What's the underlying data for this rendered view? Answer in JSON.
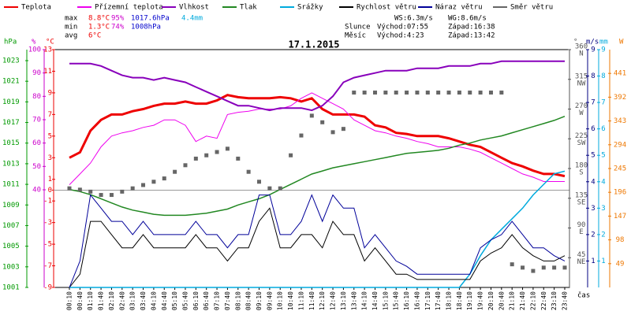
{
  "chart_data": {
    "type": "line",
    "title": "17.1.2015",
    "stats": [
      {
        "label": "max",
        "values": [
          "8.8°C",
          "95%",
          "1017.6hPa",
          "4.4mm"
        ]
      },
      {
        "label": "min",
        "values": [
          "1.3°C",
          "74%",
          "1008hPa"
        ]
      },
      {
        "label": "avg",
        "values": [
          "6°C"
        ]
      }
    ],
    "wind_stats": [
      "WS:6.3m/s",
      "WG:8.6m/s"
    ],
    "sun": [
      "Slunce",
      "Východ:07:55",
      "Západ:16:38"
    ],
    "moon": [
      "Měsíc",
      "Východ:4:23",
      "Západ:13:42"
    ],
    "x_label": "čas",
    "categories": [
      "00:10",
      "00:40",
      "01:10",
      "01:40",
      "02:10",
      "02:40",
      "03:10",
      "03:40",
      "04:10",
      "04:40",
      "05:10",
      "05:40",
      "06:10",
      "06:40",
      "07:10",
      "07:40",
      "08:10",
      "08:40",
      "09:10",
      "09:40",
      "10:10",
      "10:40",
      "11:10",
      "11:40",
      "12:10",
      "12:40",
      "13:10",
      "13:40",
      "14:10",
      "14:40",
      "15:10",
      "15:40",
      "16:10",
      "16:40",
      "17:10",
      "17:40",
      "18:10",
      "18:40",
      "19:10",
      "19:40",
      "20:10",
      "20:40",
      "21:10",
      "21:40",
      "22:10",
      "22:40",
      "23:10",
      "23:40"
    ],
    "axes": [
      {
        "label": "hPa",
        "side": "left",
        "color": "#009900",
        "lim": [
          1001,
          1023
        ],
        "ticks": [
          1001,
          1003,
          1005,
          1007,
          1009,
          1011,
          1013,
          1015,
          1017,
          1019,
          1021,
          1023
        ]
      },
      {
        "label": "%",
        "side": "left",
        "color": "#cc00cc",
        "lim": [
          40,
          100
        ],
        "ticks": [
          40,
          50,
          60,
          70,
          80,
          90,
          100
        ]
      },
      {
        "label": "°C",
        "side": "left",
        "color": "#ee0000",
        "lim": [
          -9,
          13
        ],
        "ticks": [
          -9,
          -7,
          -5,
          -3,
          -1,
          0,
          1,
          3,
          5,
          7,
          9,
          11,
          13
        ]
      },
      {
        "label": "°",
        "side": "right",
        "color": "#555555",
        "lim": [
          0,
          360
        ],
        "ticks": [
          45,
          90,
          135,
          180,
          225,
          270,
          315,
          360
        ],
        "tick_names": [
          "NE",
          "E",
          "SE",
          "S",
          "SW",
          "W",
          "NW",
          "N"
        ]
      },
      {
        "label": "m/s",
        "side": "right",
        "color": "#000080",
        "lim": [
          0,
          9
        ],
        "ticks": [
          1,
          2,
          3,
          4,
          5,
          6,
          7,
          8,
          9
        ]
      },
      {
        "label": "mm",
        "side": "right",
        "color": "#00aadd",
        "lim": [
          0,
          9
        ],
        "ticks": [
          1,
          2,
          3,
          4,
          5,
          6,
          7,
          8,
          9
        ]
      },
      {
        "label": "W",
        "side": "right",
        "color": "#ee7700",
        "lim": [
          0,
          490
        ],
        "ticks": [
          49,
          98,
          147,
          196,
          245,
          294,
          343,
          392,
          441
        ]
      }
    ],
    "series": [
      {
        "name": "Teplota",
        "color": "#ee0000",
        "axis": 2,
        "width": 3,
        "values": [
          3,
          3.5,
          5.5,
          6.5,
          7,
          7,
          7.3,
          7.5,
          7.8,
          8,
          8,
          8.2,
          8,
          8,
          8.3,
          8.8,
          8.6,
          8.5,
          8.5,
          8.5,
          8.6,
          8.5,
          8.2,
          8.5,
          7.5,
          7,
          7,
          7,
          6.8,
          6,
          5.8,
          5.3,
          5.2,
          5,
          5,
          5,
          4.8,
          4.5,
          4.2,
          4,
          3.5,
          3,
          2.5,
          2.2,
          1.8,
          1.5,
          1.5,
          1.3
        ]
      },
      {
        "name": "Přízemní teplota",
        "color": "#ee00ee",
        "axis": 2,
        "width": 1,
        "values": [
          0.5,
          1.5,
          2.5,
          4,
          5,
          5.3,
          5.5,
          5.8,
          6,
          6.5,
          6.5,
          6,
          4.5,
          5,
          4.8,
          7,
          7.2,
          7.3,
          7.5,
          7.5,
          7.5,
          7.8,
          8.5,
          9,
          8.5,
          8,
          7.5,
          6.5,
          6,
          5.5,
          5.3,
          5,
          4.8,
          4.5,
          4.3,
          4,
          4,
          4,
          3.8,
          3.5,
          3,
          2.5,
          2,
          1.5,
          1.2,
          0.8,
          0.8,
          0.8
        ]
      },
      {
        "name": "Vlhkost",
        "color": "#8800bb",
        "axis": 1,
        "width": 2,
        "values": [
          94,
          94,
          94,
          93,
          91,
          89,
          88,
          88,
          87,
          88,
          87,
          86,
          84,
          82,
          80,
          78,
          76,
          76,
          75,
          74,
          75,
          75,
          75,
          74,
          76,
          80,
          86,
          88,
          89,
          90,
          91,
          91,
          91,
          92,
          92,
          92,
          93,
          93,
          93,
          94,
          94,
          95,
          95,
          95,
          95,
          95,
          95,
          95
        ]
      },
      {
        "name": "Tlak",
        "color": "#228822",
        "axis": 0,
        "width": 1.5,
        "values": [
          1010.5,
          1010.3,
          1010,
          1009.6,
          1009.2,
          1008.8,
          1008.5,
          1008.3,
          1008.1,
          1008,
          1008,
          1008,
          1008.1,
          1008.2,
          1008.4,
          1008.6,
          1009,
          1009.3,
          1009.6,
          1010,
          1010.5,
          1011,
          1011.5,
          1012,
          1012.3,
          1012.6,
          1012.8,
          1013,
          1013.2,
          1013.4,
          1013.6,
          1013.8,
          1014,
          1014.1,
          1014.2,
          1014.3,
          1014.5,
          1014.8,
          1015,
          1015.3,
          1015.5,
          1015.7,
          1016,
          1016.3,
          1016.6,
          1016.9,
          1017.2,
          1017.6
        ]
      },
      {
        "name": "Srážky",
        "color": "#00aadd",
        "axis": 5,
        "width": 1.5,
        "values": [
          0,
          0,
          0,
          0,
          0,
          0,
          0,
          0,
          0,
          0,
          0,
          0,
          0,
          0,
          0,
          0,
          0,
          0,
          0,
          0,
          0,
          0,
          0,
          0,
          0,
          0,
          0,
          0,
          0,
          0,
          0,
          0,
          0,
          0,
          0,
          0,
          0,
          0,
          0.5,
          1.2,
          1.8,
          2.2,
          2.6,
          3,
          3.5,
          3.9,
          4.3,
          4.4
        ]
      },
      {
        "name": "Rychlost větru",
        "color": "#000000",
        "axis": 4,
        "width": 1,
        "values": [
          0,
          0.5,
          2.5,
          2.5,
          2,
          1.5,
          1.5,
          2,
          1.5,
          1.5,
          1.5,
          1.5,
          2,
          1.5,
          1.5,
          1,
          1.5,
          1.5,
          2.5,
          3,
          1.5,
          1.5,
          2,
          2,
          1.5,
          2.5,
          2,
          2,
          1,
          1.5,
          1,
          0.5,
          0.5,
          0.3,
          0.3,
          0.3,
          0.3,
          0.3,
          0.3,
          1,
          1.3,
          1.5,
          2,
          1.5,
          1.2,
          1,
          1,
          1.2
        ]
      },
      {
        "name": "Náraz větru",
        "color": "#000099",
        "axis": 4,
        "width": 1,
        "values": [
          0,
          1,
          3.5,
          3,
          2.5,
          2.5,
          2,
          2.5,
          2,
          2,
          2,
          2,
          2.5,
          2,
          2,
          1.5,
          2,
          2,
          3.5,
          3.5,
          2,
          2,
          2.5,
          3.5,
          2.5,
          3.5,
          3,
          3,
          1.5,
          2,
          1.5,
          1,
          0.8,
          0.5,
          0.5,
          0.5,
          0.5,
          0.5,
          0.5,
          1.5,
          1.8,
          2,
          2.5,
          2,
          1.5,
          1.5,
          1.2,
          1
        ]
      },
      {
        "name": "Směr větru",
        "color": "#666666",
        "axis": 3,
        "marker": "square",
        "values": [
          150,
          148,
          145,
          140,
          140,
          145,
          150,
          155,
          160,
          165,
          175,
          185,
          195,
          200,
          205,
          210,
          195,
          175,
          160,
          150,
          150,
          200,
          230,
          260,
          250,
          235,
          240,
          295,
          295,
          295,
          295,
          295,
          295,
          295,
          295,
          295,
          295,
          295,
          295,
          295,
          295,
          295,
          35,
          30,
          25,
          30,
          30,
          30
        ]
      }
    ]
  }
}
